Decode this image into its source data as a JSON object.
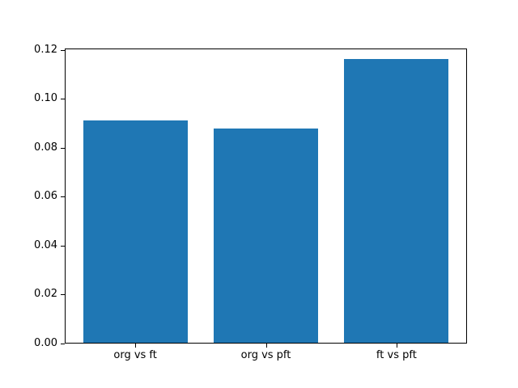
{
  "figure": {
    "background": "#ffffff"
  },
  "chart_data": {
    "type": "bar",
    "title": "",
    "xlabel": "",
    "ylabel": "",
    "categories": [
      "org vs ft",
      "org vs pft",
      "ft vs pft"
    ],
    "values": [
      0.0912,
      0.0877,
      0.1161
    ],
    "bar_color": "#1f77b4",
    "bar_width_fraction": 0.8,
    "ylim": [
      0,
      0.1205
    ],
    "xlim": [
      -0.54,
      2.54
    ],
    "yticks": [
      0.0,
      0.02,
      0.04,
      0.06,
      0.08,
      0.1,
      0.12
    ],
    "ytick_labels": [
      "0.00",
      "0.02",
      "0.04",
      "0.06",
      "0.08",
      "0.10",
      "0.12"
    ],
    "grid": false,
    "legend_visible": false,
    "spine_color": "#000000",
    "text_color": "#000000"
  }
}
